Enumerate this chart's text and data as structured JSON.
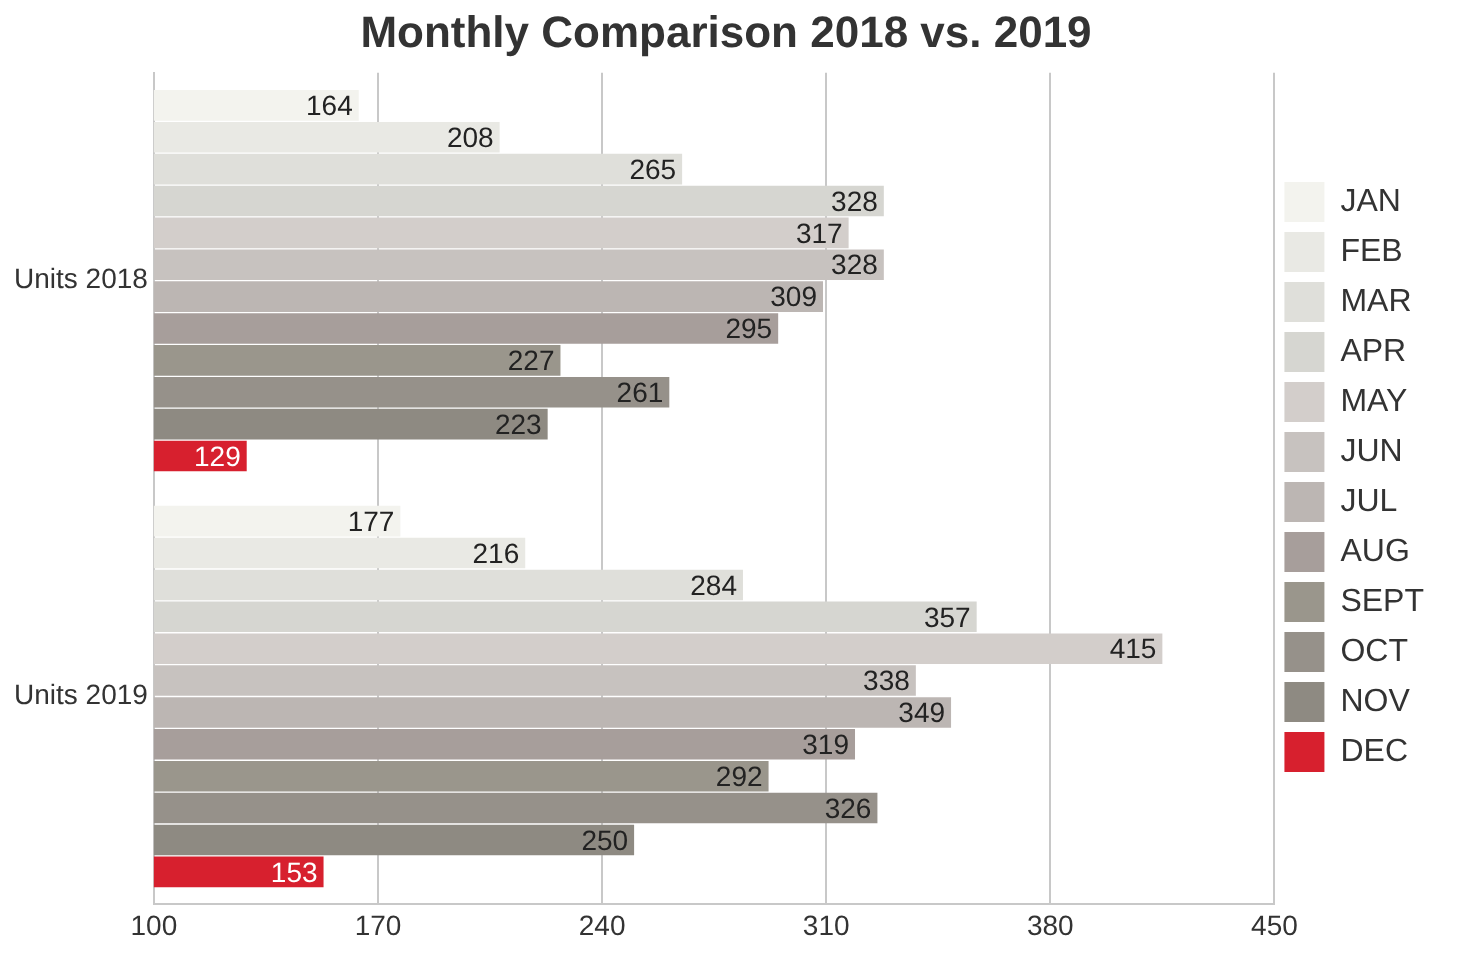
{
  "chart_data": {
    "type": "bar",
    "orientation": "horizontal",
    "title": "Monthly Comparison 2018 vs. 2019",
    "categories": [
      "Units 2018",
      "Units 2019"
    ],
    "series": [
      {
        "name": "JAN",
        "color": "#f3f3ee",
        "values": [
          164,
          177
        ]
      },
      {
        "name": "FEB",
        "color": "#e9e9e4",
        "values": [
          208,
          216
        ]
      },
      {
        "name": "MAR",
        "color": "#dfdfda",
        "values": [
          265,
          284
        ]
      },
      {
        "name": "APR",
        "color": "#d6d6d1",
        "values": [
          328,
          357
        ]
      },
      {
        "name": "MAY",
        "color": "#d3cecb",
        "values": [
          317,
          415
        ]
      },
      {
        "name": "JUN",
        "color": "#c7c2bf",
        "values": [
          328,
          338
        ]
      },
      {
        "name": "JUL",
        "color": "#bcb6b3",
        "values": [
          309,
          349
        ]
      },
      {
        "name": "AUG",
        "color": "#a79e9b",
        "values": [
          295,
          319
        ]
      },
      {
        "name": "SEPT",
        "color": "#9a968c",
        "values": [
          227,
          292
        ]
      },
      {
        "name": "OCT",
        "color": "#96918a",
        "values": [
          261,
          326
        ]
      },
      {
        "name": "NOV",
        "color": "#8e8a82",
        "values": [
          223,
          250
        ]
      },
      {
        "name": "DEC",
        "color": "#d7202e",
        "values": [
          129,
          153
        ]
      }
    ],
    "xlim": [
      100,
      450
    ],
    "xticks": [
      100,
      170,
      240,
      310,
      380,
      450
    ],
    "grid": "x",
    "legend": "right",
    "data_labels": true
  }
}
